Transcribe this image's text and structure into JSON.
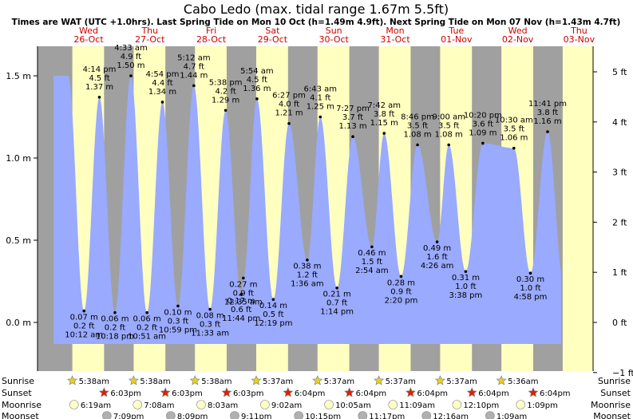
{
  "title": "Cabo Ledo (max. tidal range 1.67m 5.5ft)",
  "subtitle": "Times are WAT (UTC +1.0hrs). Last Spring Tide on Mon 10 Oct (h=1.49m 4.9ft). Next Spring Tide on Mon 07 Nov (h=1.43m 4.7ft)",
  "colors": {
    "night": "#a0a0a0",
    "day": "#ffffc0",
    "water": "#99aaff",
    "sunrise": "#e8d020",
    "sunset": "#dd2200",
    "moonrise": "#ffffc8",
    "moonset": "#b0b0b0",
    "day_label": "#cc0000"
  },
  "chart_data": {
    "type": "area",
    "title": "Cabo Ledo (max. tidal range 1.67m 5.5ft)",
    "x_unit": "hours since Wed 26-Oct 00:00 WAT",
    "ylim": [
      -0.3,
      1.7
    ],
    "left_axis": {
      "ticks": [
        1.5,
        1.0,
        0.5,
        0.0
      ],
      "labels": [
        "1.5 m",
        "1.0 m",
        "0.5 m",
        "0.0 m"
      ]
    },
    "right_axis": {
      "ticks": [
        5,
        4,
        3,
        2,
        1,
        0,
        -1
      ],
      "labels": [
        "5 ft",
        "4 ft",
        "3 ft",
        "2 ft",
        "1 ft",
        "0 ft",
        "−1 ft"
      ]
    },
    "days": [
      {
        "name": "Wed",
        "date": "26-Oct"
      },
      {
        "name": "Thu",
        "date": "27-Oct"
      },
      {
        "name": "Fri",
        "date": "28-Oct"
      },
      {
        "name": "Sat",
        "date": "29-Oct"
      },
      {
        "name": "Sun",
        "date": "30-Oct"
      },
      {
        "name": "Mon",
        "date": "31-Oct"
      },
      {
        "name": "Tue",
        "date": "01-Nov"
      },
      {
        "name": "Wed",
        "date": "02-Nov"
      },
      {
        "name": "Thu",
        "date": "03-Nov"
      }
    ],
    "tides": [
      {
        "kind": "high",
        "h": 1.37,
        "time": "4:14 pm",
        "ft": "4.5 ft",
        "m": "1.37 m"
      },
      {
        "kind": "low",
        "h": 0.07,
        "time": "10:12 am",
        "ft": "0.2 ft",
        "m": "0.07 m"
      },
      {
        "kind": "low",
        "h": 0.06,
        "time": "10:18 pm",
        "ft": "0.2 ft",
        "m": "0.06 m"
      },
      {
        "kind": "high",
        "h": 1.5,
        "time": "4:33 am",
        "ft": "4.9 ft",
        "m": "1.50 m"
      },
      {
        "kind": "high",
        "h": 1.34,
        "time": "4:54 pm",
        "ft": "4.4 ft",
        "m": "1.34 m"
      },
      {
        "kind": "low",
        "h": 0.06,
        "time": "10:51 am",
        "ft": "0.2 ft",
        "m": "0.06 m"
      },
      {
        "kind": "low",
        "h": 0.1,
        "time": "10:59 pm",
        "ft": "0.3 ft",
        "m": "0.10 m"
      },
      {
        "kind": "high",
        "h": 1.44,
        "time": "5:12 am",
        "ft": "4.7 ft",
        "m": "1.44 m"
      },
      {
        "kind": "high",
        "h": 1.29,
        "time": "5:38 pm",
        "ft": "4.2 ft",
        "m": "1.29 m"
      },
      {
        "kind": "low",
        "h": 0.08,
        "time": "11:33 am",
        "ft": "0.3 ft",
        "m": "0.08 m"
      },
      {
        "kind": "low",
        "h": 0.17,
        "time": "11:44 pm",
        "ft": "0.6 ft",
        "m": "0.17 m"
      },
      {
        "kind": "high",
        "h": 1.36,
        "time": "5:54 am",
        "ft": "4.5 ft",
        "m": "1.36 m"
      },
      {
        "kind": "high",
        "h": 1.21,
        "time": "6:27 pm",
        "ft": "4.0 ft",
        "m": "1.21 m"
      },
      {
        "kind": "low",
        "h": 0.14,
        "time": "12:19 pm",
        "ft": "0.5 ft",
        "m": "0.14 m"
      },
      {
        "kind": "low",
        "h": 0.27,
        "time": "12:35 am",
        "ft": "0.9 ft",
        "m": "0.27 m"
      },
      {
        "kind": "high",
        "h": 1.25,
        "time": "6:43 am",
        "ft": "4.1 ft",
        "m": "1.25 m"
      },
      {
        "kind": "high",
        "h": 1.13,
        "time": "7:27 pm",
        "ft": "3.7 ft",
        "m": "1.13 m"
      },
      {
        "kind": "low",
        "h": 0.21,
        "time": "1:14 pm",
        "ft": "0.7 ft",
        "m": "0.21 m"
      },
      {
        "kind": "low",
        "h": 0.38,
        "time": "1:36 am",
        "ft": "1.2 ft",
        "m": "0.38 m"
      },
      {
        "kind": "high",
        "h": 1.15,
        "time": "7:42 am",
        "ft": "3.8 ft",
        "m": "1.15 m"
      },
      {
        "kind": "high",
        "h": 1.08,
        "time": "8:46 pm",
        "ft": "3.5 ft",
        "m": "1.08 m"
      },
      {
        "kind": "low",
        "h": 0.28,
        "time": "2:20 pm",
        "ft": "0.9 ft",
        "m": "0.28 m"
      },
      {
        "kind": "low",
        "h": 0.46,
        "time": "2:54 am",
        "ft": "1.5 ft",
        "m": "0.46 m"
      },
      {
        "kind": "high",
        "h": 1.08,
        "time": "9:00 am",
        "ft": "3.5 ft",
        "m": "1.08 m"
      },
      {
        "kind": "high",
        "h": 1.09,
        "time": "10:20 pm",
        "ft": "3.6 ft",
        "m": "1.09 m"
      },
      {
        "kind": "low",
        "h": 0.31,
        "time": "3:38 pm",
        "ft": "1.0 ft",
        "m": "0.31 m"
      },
      {
        "kind": "low",
        "h": 0.49,
        "time": "4:26 am",
        "ft": "1.6 ft",
        "m": "0.49 m"
      },
      {
        "kind": "high",
        "h": 1.06,
        "time": "10:30 am",
        "ft": "3.5 ft",
        "m": "1.06 m"
      },
      {
        "kind": "high",
        "h": 1.16,
        "time": "11:41 pm",
        "ft": "3.8 ft",
        "m": "1.16 m"
      },
      {
        "kind": "low",
        "h": 0.3,
        "time": "4:58 pm",
        "ft": "1.0 ft",
        "m": "0.30 m"
      }
    ],
    "sun_moon": {
      "labels": {
        "sunrise": "Sunrise",
        "sunset": "Sunset",
        "moonrise": "Moonrise",
        "moonset": "Moonset"
      },
      "sunrise": [
        "5:38am",
        "5:38am",
        "5:38am",
        "5:37am",
        "5:37am",
        "5:37am",
        "5:37am",
        "5:36am"
      ],
      "sunset": [
        "6:03pm",
        "6:03pm",
        "6:03pm",
        "6:04pm",
        "6:04pm",
        "6:04pm",
        "6:04pm",
        "6:04pm"
      ],
      "moonrise": [
        "6:19am",
        "7:08am",
        "8:03am",
        "9:02am",
        "10:05am",
        "11:09am",
        "12:10pm",
        "1:09pm"
      ],
      "moonset": [
        "7:09pm",
        "8:09pm",
        "9:11pm",
        "10:15pm",
        "11:17pm",
        "12:16am",
        "1:09am"
      ]
    }
  }
}
